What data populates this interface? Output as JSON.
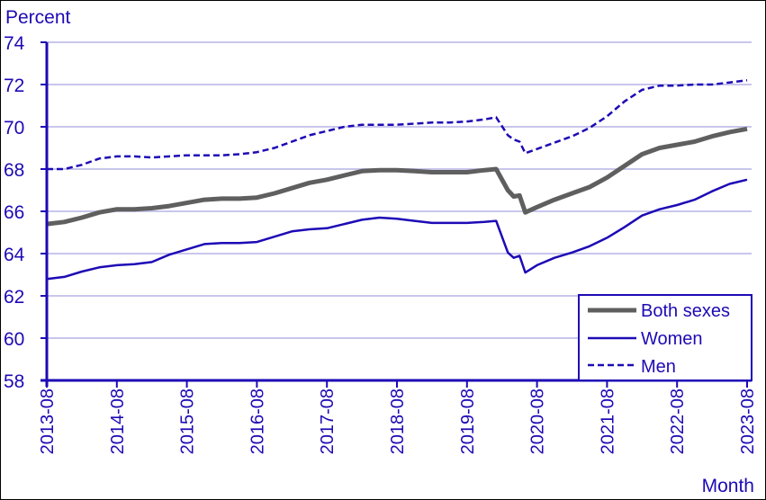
{
  "chart_data": {
    "type": "line",
    "title": "",
    "ylabel": "Percent",
    "xlabel": "Month",
    "ylim": [
      58,
      74
    ],
    "yticks": [
      58,
      60,
      62,
      64,
      66,
      68,
      70,
      72,
      74
    ],
    "xticks": [
      "2013-08",
      "2014-08",
      "2015-08",
      "2016-08",
      "2017-08",
      "2018-08",
      "2019-08",
      "2020-08",
      "2021-08",
      "2022-08",
      "2023-08"
    ],
    "grid": true,
    "legend_position": "lower right",
    "colors": {
      "axis": "#1d0ab5",
      "grid": "#c9c6ec",
      "both": "#5f5f5f",
      "women": "#1d0ab5",
      "men": "#1d0ab5"
    },
    "x": [
      "2013-08",
      "2013-11",
      "2014-02",
      "2014-05",
      "2014-08",
      "2014-11",
      "2015-02",
      "2015-05",
      "2015-08",
      "2015-11",
      "2016-02",
      "2016-05",
      "2016-08",
      "2016-11",
      "2017-02",
      "2017-05",
      "2017-08",
      "2017-11",
      "2018-02",
      "2018-05",
      "2018-08",
      "2018-11",
      "2019-02",
      "2019-05",
      "2019-08",
      "2019-11",
      "2020-01",
      "2020-03",
      "2020-04",
      "2020-05",
      "2020-06",
      "2020-08",
      "2020-11",
      "2021-02",
      "2021-05",
      "2021-08",
      "2021-11",
      "2022-02",
      "2022-05",
      "2022-08",
      "2022-11",
      "2023-02",
      "2023-05",
      "2023-08"
    ],
    "series": [
      {
        "name": "Both sexes",
        "style": "solid-thick",
        "values": [
          65.4,
          65.5,
          65.7,
          65.95,
          66.1,
          66.1,
          66.15,
          66.25,
          66.4,
          66.55,
          66.6,
          66.6,
          66.65,
          66.85,
          67.1,
          67.35,
          67.5,
          67.7,
          67.9,
          67.95,
          67.95,
          67.9,
          67.85,
          67.85,
          67.85,
          67.95,
          68.0,
          67.0,
          66.7,
          66.75,
          65.95,
          66.2,
          66.55,
          66.85,
          67.15,
          67.6,
          68.15,
          68.7,
          69.0,
          69.15,
          69.3,
          69.55,
          69.75,
          69.9
        ]
      },
      {
        "name": "Women",
        "style": "solid",
        "values": [
          62.8,
          62.9,
          63.15,
          63.35,
          63.45,
          63.5,
          63.6,
          63.95,
          64.2,
          64.45,
          64.5,
          64.5,
          64.55,
          64.8,
          65.05,
          65.15,
          65.2,
          65.4,
          65.6,
          65.7,
          65.65,
          65.55,
          65.45,
          65.45,
          65.45,
          65.5,
          65.55,
          64.05,
          63.8,
          63.9,
          63.1,
          63.45,
          63.8,
          64.05,
          64.35,
          64.75,
          65.25,
          65.8,
          66.1,
          66.3,
          66.55,
          66.95,
          67.3,
          67.5
        ]
      },
      {
        "name": "Men",
        "style": "dashed",
        "values": [
          68.0,
          68.0,
          68.2,
          68.5,
          68.6,
          68.6,
          68.55,
          68.6,
          68.65,
          68.65,
          68.65,
          68.7,
          68.8,
          69.0,
          69.3,
          69.6,
          69.8,
          70.0,
          70.1,
          70.1,
          70.1,
          70.15,
          70.2,
          70.2,
          70.25,
          70.35,
          70.45,
          69.6,
          69.4,
          69.3,
          68.75,
          68.95,
          69.25,
          69.55,
          69.95,
          70.5,
          71.2,
          71.75,
          71.95,
          71.95,
          72.0,
          72.0,
          72.1,
          72.2
        ]
      }
    ]
  },
  "axis": {
    "y_title": "Percent",
    "x_title": "Month"
  },
  "legend": {
    "items": [
      "Both sexes",
      "Women",
      "Men"
    ]
  }
}
